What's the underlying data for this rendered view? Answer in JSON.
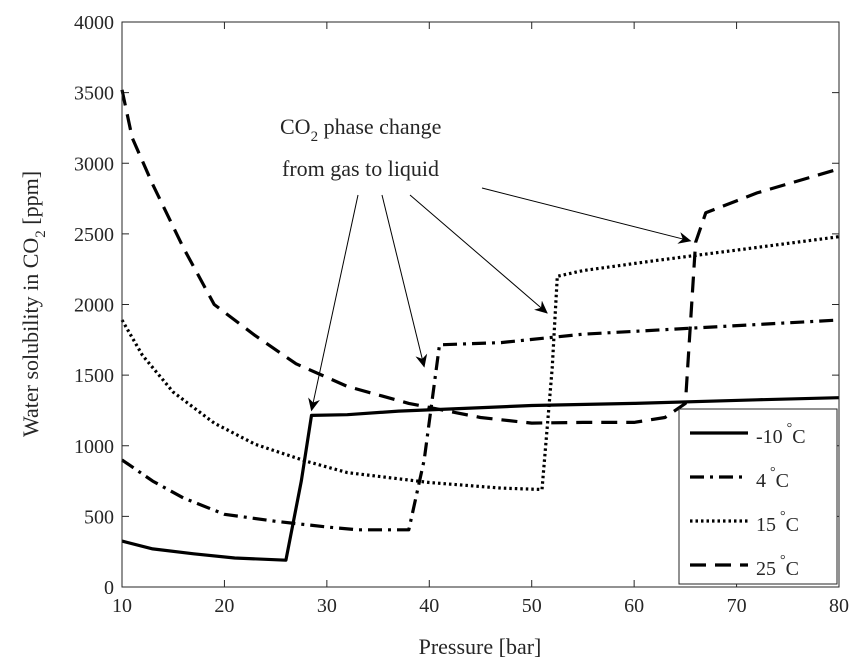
{
  "chart_data": {
    "type": "line",
    "title": "",
    "xlabel": "Pressure [bar]",
    "ylabel": {
      "main": "Water solubility in CO",
      "sub": "2",
      "unit": " [ppm]"
    },
    "xlim": [
      10,
      80
    ],
    "ylim": [
      0,
      4000
    ],
    "x_ticks": [
      10,
      20,
      30,
      40,
      50,
      60,
      70,
      80
    ],
    "y_ticks": [
      0,
      500,
      1000,
      1500,
      2000,
      2500,
      3000,
      3500,
      4000
    ],
    "grid": false,
    "legend_position": "bottom-right",
    "series": [
      {
        "name": {
          "value": "-10",
          "unit": "C"
        },
        "style": "solid",
        "color": "#000000",
        "x": [
          10,
          13,
          17,
          21,
          26,
          27.5,
          28.5,
          32,
          37,
          42,
          50,
          60,
          72,
          80
        ],
        "y": [
          325,
          270,
          235,
          205,
          190,
          750,
          1215,
          1220,
          1245,
          1260,
          1285,
          1300,
          1325,
          1340
        ]
      },
      {
        "name": {
          "value": "4",
          "unit": "C"
        },
        "style": "dashdot",
        "color": "#000000",
        "x": [
          10,
          13,
          16,
          20,
          25,
          30,
          33,
          38,
          39.5,
          41,
          47,
          55,
          65,
          80
        ],
        "y": [
          900,
          750,
          630,
          515,
          465,
          425,
          405,
          405,
          900,
          1715,
          1730,
          1790,
          1830,
          1890
        ]
      },
      {
        "name": {
          "value": "15",
          "unit": "C"
        },
        "style": "dotted",
        "color": "#000000",
        "x": [
          10,
          12,
          15,
          19,
          23,
          28,
          32,
          40,
          47,
          51,
          52,
          52.5,
          55,
          62,
          70,
          80
        ],
        "y": [
          1890,
          1640,
          1380,
          1160,
          1010,
          890,
          810,
          740,
          700,
          690,
          1550,
          2200,
          2240,
          2310,
          2385,
          2480
        ]
      },
      {
        "name": {
          "value": "25",
          "unit": "C"
        },
        "style": "dashed",
        "color": "#000000",
        "x": [
          10,
          11,
          13,
          16,
          19,
          23,
          27,
          32,
          38,
          45,
          50,
          55,
          60,
          63,
          65,
          66,
          67,
          72,
          80
        ],
        "y": [
          3520,
          3180,
          2850,
          2400,
          2000,
          1780,
          1580,
          1420,
          1300,
          1200,
          1160,
          1165,
          1165,
          1200,
          1300,
          2440,
          2650,
          2790,
          2960
        ]
      }
    ],
    "annotation": {
      "line1": {
        "main": "CO",
        "sub": "2",
        "rest": " phase change"
      },
      "line2": "from gas to liquid",
      "arrow_targets": [
        {
          "x": 28.5,
          "y": 1250
        },
        {
          "x": 39.5,
          "y": 1560
        },
        {
          "x": 51.5,
          "y": 1940
        },
        {
          "x": 65.5,
          "y": 2450
        }
      ]
    },
    "legend_degree_symbol": "°"
  }
}
